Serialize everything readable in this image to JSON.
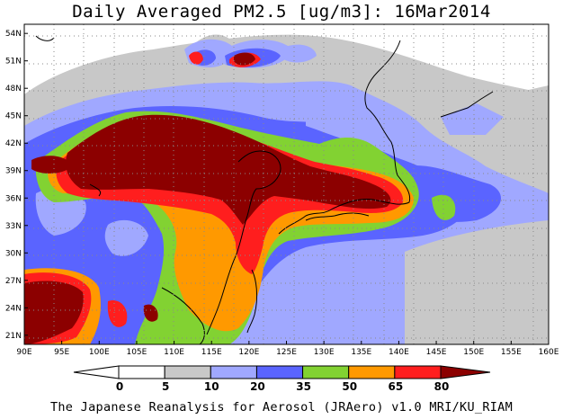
{
  "title": "Daily Averaged PM2.5 [ug/m3]: 16Mar2014",
  "credit": "The Japanese Reanalysis for Aerosol (JRAero) v1.0 MRI/KU_RIAM",
  "map": {
    "lon_range": [
      90,
      160
    ],
    "lat_range": [
      20,
      55
    ],
    "lon_ticks": [
      "90E",
      "95E",
      "100E",
      "105E",
      "110E",
      "115E",
      "120E",
      "125E",
      "130E",
      "135E",
      "140E",
      "145E",
      "150E",
      "155E",
      "160E"
    ],
    "lat_ticks": [
      "54N",
      "51N",
      "48N",
      "45N",
      "42N",
      "39N",
      "36N",
      "33N",
      "30N",
      "27N",
      "24N",
      "21N"
    ],
    "gridlines": "dotted"
  },
  "colorbar": {
    "labels": [
      "0",
      "5",
      "10",
      "20",
      "35",
      "50",
      "65",
      "80"
    ],
    "colors": [
      "#ffffff",
      "#c8c8c8",
      "#a0a8ff",
      "#5a64ff",
      "#82d232",
      "#ff9900",
      "#ff1e1e",
      "#8c0000"
    ]
  }
}
